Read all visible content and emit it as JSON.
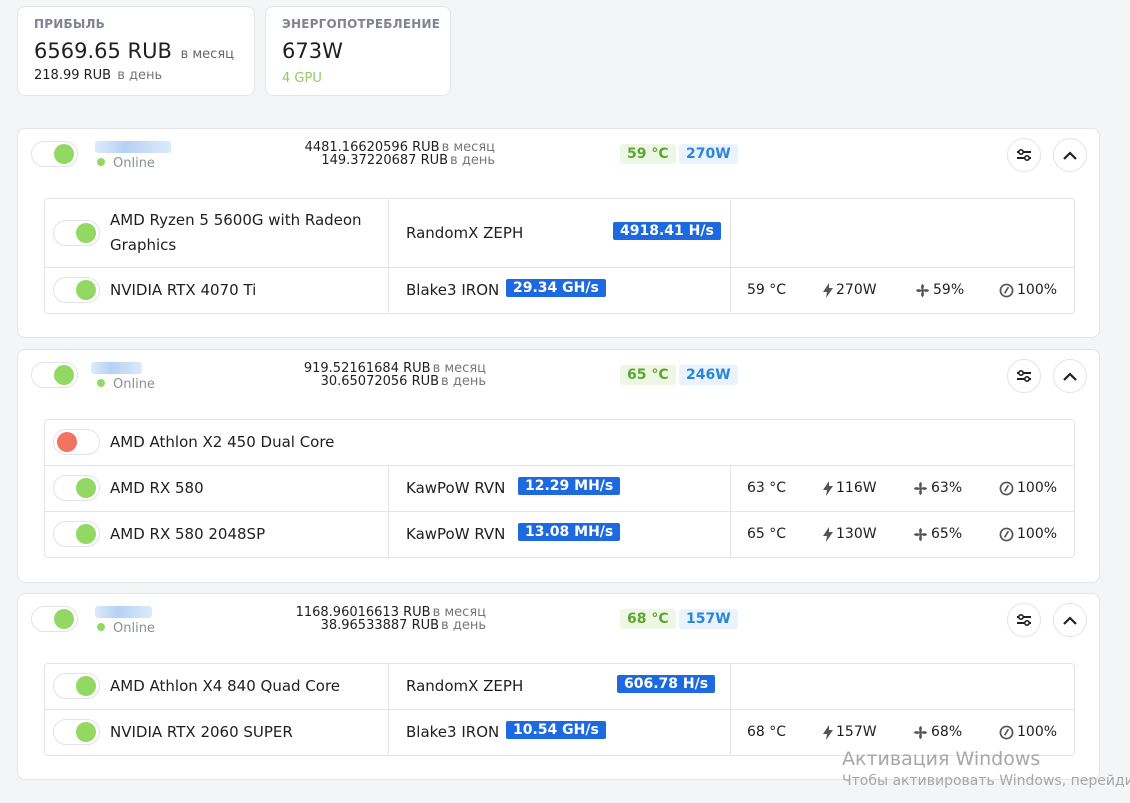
{
  "summary": {
    "profit": {
      "label": "ПРИБЫЛЬ",
      "monthly_value": "6569.65 RUB",
      "monthly_unit": "в месяц",
      "daily_value": "218.99 RUB",
      "daily_unit": "в день"
    },
    "power": {
      "label": "ЭНЕРГОПОТРЕБЛЕНИЕ",
      "value": "673W",
      "gpu_count": "4 GPU"
    }
  },
  "rigs": [
    {
      "status": "Online",
      "earn_month": "4481.16620596 RUB",
      "earn_month_unit": "в месяц",
      "earn_day": "149.37220687 RUB",
      "earn_day_unit": "в день",
      "temp": "59 °C",
      "power": "270W",
      "devices": [
        {
          "name": "AMD Ryzen 5 5600G with Radeon Graphics",
          "enabled": true,
          "algo": "RandomX ZEPH",
          "hashrate": "4918.41 H/s"
        },
        {
          "name": "NVIDIA RTX 4070 Ti",
          "enabled": true,
          "algo": "Blake3 IRON",
          "hashrate": "29.34 GH/s",
          "temp": "59 °C",
          "power": "270W",
          "fan": "59%",
          "load": "100%"
        }
      ]
    },
    {
      "status": "Online",
      "earn_month": "919.52161684 RUB",
      "earn_month_unit": "в месяц",
      "earn_day": "30.65072056 RUB",
      "earn_day_unit": "в день",
      "temp": "65 °C",
      "power": "246W",
      "devices": [
        {
          "name": "AMD Athlon X2 450 Dual Core",
          "enabled": false
        },
        {
          "name": "AMD RX 580",
          "enabled": true,
          "algo": "KawPoW RVN",
          "hashrate": "12.29 MH/s",
          "temp": "63 °C",
          "power": "116W",
          "fan": "63%",
          "load": "100%"
        },
        {
          "name": "AMD RX 580 2048SP",
          "enabled": true,
          "algo": "KawPoW RVN",
          "hashrate": "13.08 MH/s",
          "temp": "65 °C",
          "power": "130W",
          "fan": "65%",
          "load": "100%"
        }
      ]
    },
    {
      "status": "Online",
      "earn_month": "1168.96016613 RUB",
      "earn_month_unit": "в месяц",
      "earn_day": "38.96533887 RUB",
      "earn_day_unit": "в день",
      "temp": "68 °C",
      "power": "157W",
      "devices": [
        {
          "name": "AMD Athlon X4 840 Quad Core",
          "enabled": true,
          "algo": "RandomX ZEPH",
          "hashrate": "606.78 H/s"
        },
        {
          "name": "NVIDIA RTX 2060 SUPER",
          "enabled": true,
          "algo": "Blake3 IRON",
          "hashrate": "10.54 GH/s",
          "temp": "68 °C",
          "power": "157W",
          "fan": "68%",
          "load": "100%"
        }
      ]
    }
  ],
  "watermark": {
    "line1": "Активация Windows",
    "line2": "Чтобы активировать Windows, перейдите"
  },
  "colors": {
    "accent_blue": "#1d6ae0",
    "online_green": "#92d863",
    "disabled_red": "#f17360"
  }
}
